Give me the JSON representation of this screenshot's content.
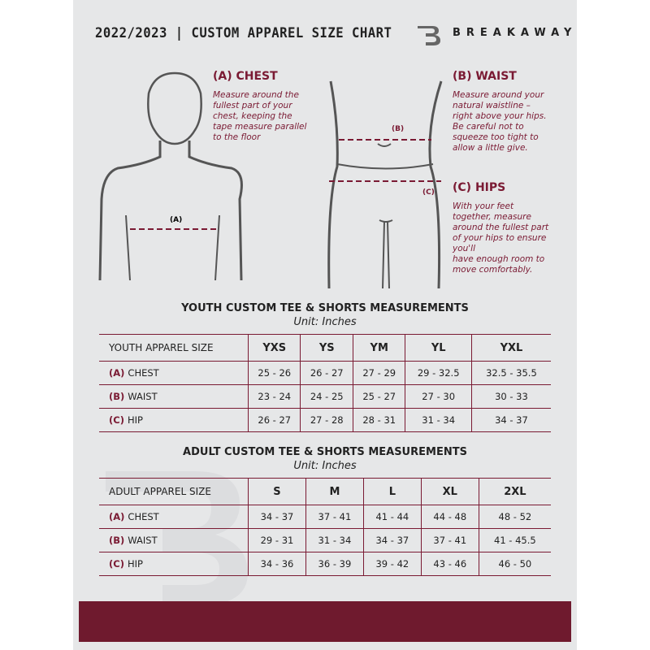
{
  "header": {
    "title": "2022/2023  |  CUSTOM APPAREL SIZE CHART",
    "brand": "BREAKAWAY"
  },
  "colors": {
    "accent": "#7a1a33",
    "background": "#e6e7e8",
    "band": "#6f1a2e"
  },
  "chest": {
    "heading": "(A) CHEST",
    "desc": [
      "Measure around the",
      "fullest part of your",
      "chest, keeping the",
      "tape measure parallel",
      "to the floor"
    ],
    "marker": "(A)"
  },
  "waist": {
    "heading": "(B) WAIST",
    "desc": [
      "Measure around your",
      "natural waistline –",
      "right above your hips.",
      "Be careful not to",
      "squeeze too tight to",
      "allow a little give."
    ],
    "marker": "(B)"
  },
  "hips": {
    "heading": "(C) HIPS",
    "desc": [
      "With your feet",
      "together, measure",
      "around the fullest part",
      "of your hips to ensure",
      "you'll",
      "have enough room to",
      "move comfortably."
    ],
    "marker": "(C)"
  },
  "youth": {
    "title": "YOUTH CUSTOM TEE & SHORTS MEASUREMENTS",
    "unit": "Unit: Inches",
    "size_label": "YOUTH APPAREL SIZE",
    "sizes": [
      "YXS",
      "YS",
      "YM",
      "YL",
      "YXL"
    ],
    "rows": [
      {
        "code": "(A)",
        "name": "CHEST",
        "values": [
          "25 - 26",
          "26 - 27",
          "27 - 29",
          "29 - 32.5",
          "32.5 - 35.5"
        ]
      },
      {
        "code": "(B)",
        "name": "WAIST",
        "values": [
          "23 - 24",
          "24 - 25",
          "25 - 27",
          "27 - 30",
          "30 - 33"
        ]
      },
      {
        "code": "(C)",
        "name": "HIP",
        "values": [
          "26 - 27",
          "27 - 28",
          "28 - 31",
          "31 - 34",
          "34 - 37"
        ]
      }
    ]
  },
  "adult": {
    "title": "ADULT CUSTOM TEE & SHORTS MEASUREMENTS",
    "unit": "Unit: Inches",
    "size_label": "ADULT APPAREL SIZE",
    "sizes": [
      "S",
      "M",
      "L",
      "XL",
      "2XL"
    ],
    "rows": [
      {
        "code": "(A)",
        "name": "CHEST",
        "values": [
          "34 - 37",
          "37 - 41",
          "41 - 44",
          "44 - 48",
          "48 - 52"
        ]
      },
      {
        "code": "(B)",
        "name": "WAIST",
        "values": [
          "29 - 31",
          "31 - 34",
          "34 - 37",
          "37 - 41",
          "41 - 45.5"
        ]
      },
      {
        "code": "(C)",
        "name": "HIP",
        "values": [
          "34 - 36",
          "36 - 39",
          "39 - 42",
          "43 - 46",
          "46 - 50"
        ]
      }
    ]
  }
}
